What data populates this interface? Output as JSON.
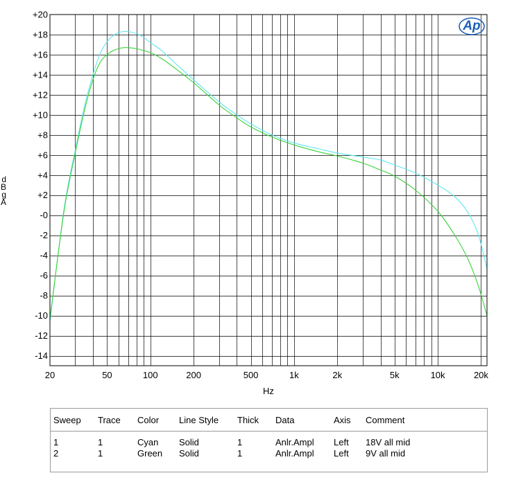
{
  "chart_data": {
    "type": "line",
    "xscale": "log",
    "xlim": [
      20,
      22000
    ],
    "ylim": [
      -15,
      20
    ],
    "grid": true,
    "xlabel": "Hz",
    "ylabel": "d B g A",
    "xticks": [
      20,
      50,
      100,
      200,
      500,
      1000,
      2000,
      5000,
      10000,
      20000
    ],
    "xtick_labels": [
      "20",
      "50",
      "100",
      "200",
      "500",
      "1k",
      "2k",
      "5k",
      "10k",
      "20k"
    ],
    "yticks": [
      20,
      18,
      16,
      14,
      12,
      10,
      8,
      6,
      4,
      2,
      0,
      -2,
      -4,
      -6,
      -8,
      -10,
      -12,
      -14
    ],
    "ytick_labels": [
      "+20",
      "+18",
      "+16",
      "+14",
      "+12",
      "+10",
      "+8",
      "+6",
      "+4",
      "+2",
      "-0",
      "-2",
      "-4",
      "-6",
      "-8",
      "-10",
      "-12",
      "-14"
    ],
    "series": [
      {
        "color": "#5fe6f0",
        "points": [
          [
            20,
            -10.6
          ],
          [
            25,
            0.5
          ],
          [
            30,
            6.5
          ],
          [
            35,
            11.0
          ],
          [
            40,
            14.1
          ],
          [
            45,
            16.2
          ],
          [
            50,
            17.3
          ],
          [
            55,
            17.9
          ],
          [
            60,
            18.2
          ],
          [
            65,
            18.3
          ],
          [
            70,
            18.3
          ],
          [
            80,
            18.1
          ],
          [
            90,
            17.7
          ],
          [
            100,
            17.2
          ],
          [
            120,
            16.4
          ],
          [
            150,
            15.1
          ],
          [
            200,
            13.5
          ],
          [
            300,
            11.3
          ],
          [
            400,
            10.0
          ],
          [
            500,
            9.1
          ],
          [
            700,
            8.0
          ],
          [
            1000,
            7.2
          ],
          [
            1500,
            6.6
          ],
          [
            2000,
            6.2
          ],
          [
            3000,
            5.8
          ],
          [
            4000,
            5.5
          ],
          [
            5000,
            5.0
          ],
          [
            7000,
            4.2
          ],
          [
            10000,
            3.0
          ],
          [
            13000,
            1.9
          ],
          [
            16000,
            0.4
          ],
          [
            19000,
            -1.8
          ],
          [
            22000,
            -5.3
          ]
        ]
      },
      {
        "color": "#3ad13a",
        "points": [
          [
            20,
            -10.3
          ],
          [
            25,
            0.3
          ],
          [
            30,
            6.2
          ],
          [
            35,
            10.6
          ],
          [
            40,
            13.6
          ],
          [
            45,
            15.3
          ],
          [
            50,
            16.0
          ],
          [
            55,
            16.4
          ],
          [
            60,
            16.6
          ],
          [
            65,
            16.7
          ],
          [
            70,
            16.7
          ],
          [
            80,
            16.6
          ],
          [
            90,
            16.4
          ],
          [
            100,
            16.2
          ],
          [
            120,
            15.6
          ],
          [
            150,
            14.6
          ],
          [
            200,
            13.2
          ],
          [
            300,
            11.0
          ],
          [
            400,
            9.7
          ],
          [
            500,
            8.8
          ],
          [
            700,
            7.8
          ],
          [
            1000,
            7.0
          ],
          [
            1500,
            6.3
          ],
          [
            2000,
            5.9
          ],
          [
            3000,
            5.2
          ],
          [
            4000,
            4.5
          ],
          [
            5000,
            3.9
          ],
          [
            7000,
            2.5
          ],
          [
            10000,
            0.4
          ],
          [
            13000,
            -1.9
          ],
          [
            16000,
            -4.2
          ],
          [
            19000,
            -6.9
          ],
          [
            22000,
            -10.0
          ]
        ]
      }
    ]
  },
  "legend_table": {
    "headers": [
      "Sweep",
      "Trace",
      "Color",
      "Line Style",
      "Thick",
      "Data",
      "Axis",
      "Comment"
    ],
    "rows": [
      [
        "1",
        "1",
        "Cyan",
        "Solid",
        "1",
        "Anlr.Ampl",
        "Left",
        "18V all mid"
      ],
      [
        "2",
        "1",
        "Green",
        "Solid",
        "1",
        "Anlr.Ampl",
        "Left",
        "9V all mid"
      ]
    ]
  },
  "logo": {
    "text": "Ap",
    "color": "#1d5fb8"
  }
}
